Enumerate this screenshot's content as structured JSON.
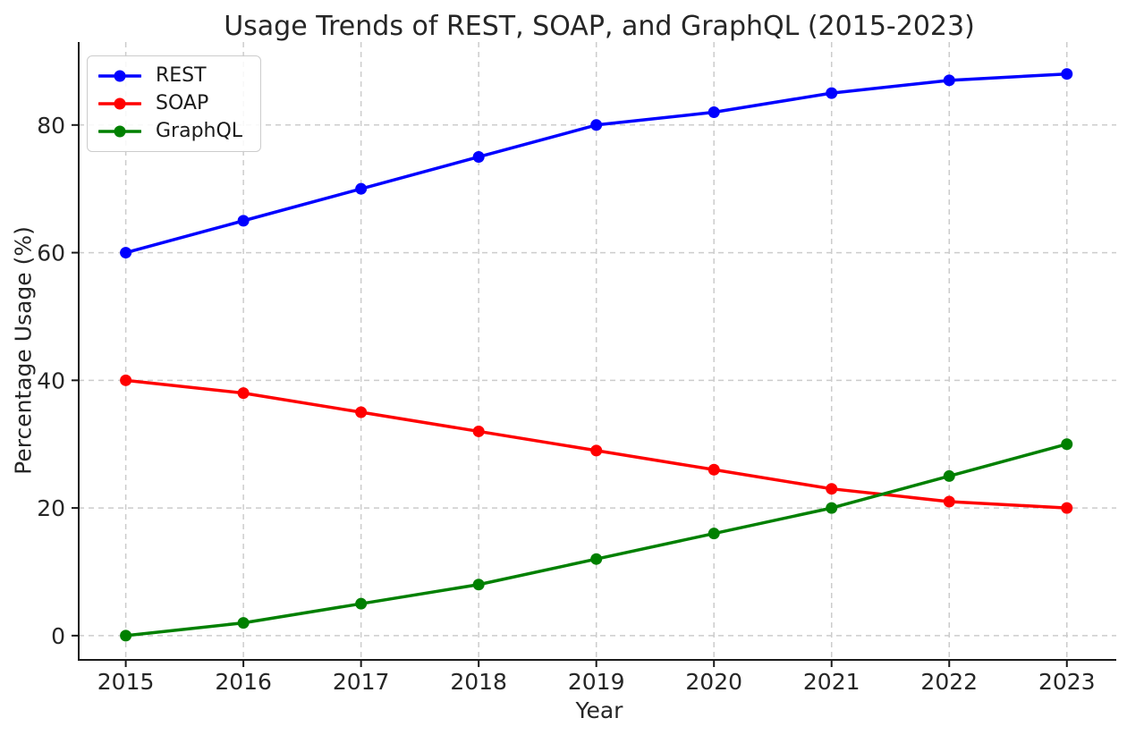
{
  "chart_data": {
    "type": "line",
    "title": "Usage Trends of REST, SOAP, and GraphQL (2015-2023)",
    "xlabel": "Year",
    "ylabel": "Percentage Usage (%)",
    "x": [
      2015,
      2016,
      2017,
      2018,
      2019,
      2020,
      2021,
      2022,
      2023
    ],
    "x_tick_labels": [
      "2015",
      "2016",
      "2017",
      "2018",
      "2019",
      "2020",
      "2021",
      "2022",
      "2023"
    ],
    "y_ticks": [
      0,
      20,
      40,
      60,
      80
    ],
    "y_tick_labels": [
      "0",
      "20",
      "40",
      "60",
      "80"
    ],
    "xlim": [
      2014.6,
      2023.42
    ],
    "ylim": [
      -3.8,
      93.0
    ],
    "grid": true,
    "grid_style": "dashed",
    "legend_position": "upper-left",
    "series": [
      {
        "name": "REST",
        "color": "#0000ff",
        "values": [
          60,
          65,
          70,
          75,
          80,
          82,
          85,
          87,
          88
        ]
      },
      {
        "name": "SOAP",
        "color": "#ff0000",
        "values": [
          40,
          38,
          35,
          32,
          29,
          26,
          23,
          21,
          20
        ]
      },
      {
        "name": "GraphQL",
        "color": "#008000",
        "values": [
          0,
          2,
          5,
          8,
          12,
          16,
          20,
          25,
          30
        ]
      }
    ],
    "colors": {
      "grid": "#cccccc",
      "axis": "#1a1a1a",
      "text": "#262626",
      "background": "#ffffff"
    }
  }
}
